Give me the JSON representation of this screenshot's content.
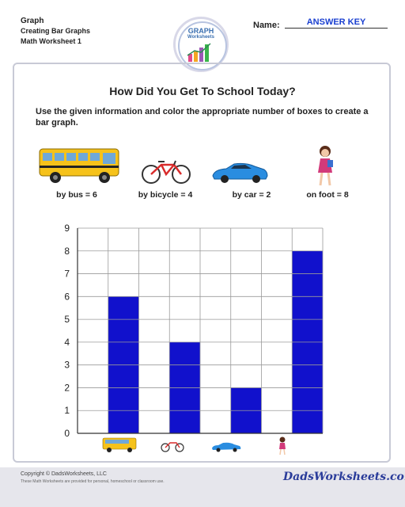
{
  "header": {
    "line1": "Graph",
    "line2": "Creating Bar Graphs",
    "line3": "Math Worksheet 1",
    "name_label": "Name:",
    "name_value": "ANSWER KEY"
  },
  "logo": {
    "title": "GRAPH",
    "subtitle": "Worksheets"
  },
  "title": "How Did You Get To School Today?",
  "instructions": "Use the given information and color the appropriate number of boxes to create a bar graph.",
  "items": [
    {
      "label": "by bus = 6",
      "icon": "school-bus-icon"
    },
    {
      "label": "by bicycle = 4",
      "icon": "bicycle-icon"
    },
    {
      "label": "by car = 2",
      "icon": "car-icon"
    },
    {
      "label": "on foot = 8",
      "icon": "walking-girl-icon"
    }
  ],
  "chart_data": {
    "type": "bar",
    "categories": [
      "bus",
      "bicycle",
      "car",
      "on foot"
    ],
    "values": [
      6,
      4,
      2,
      8
    ],
    "yticks": [
      "0",
      "1",
      "2",
      "3",
      "4",
      "5",
      "6",
      "7",
      "8",
      "9"
    ],
    "ylim": [
      0,
      9
    ],
    "grid": true,
    "bar_color": "#1111cc",
    "title": "",
    "xlabel": "",
    "ylabel": ""
  },
  "footer": {
    "copyright": "Copyright © DadsWorksheets, LLC",
    "note": "These Math Worksheets are provided for personal, homeschool or classroom use.",
    "brand": "DadsWorksheets.com"
  },
  "colors": {
    "accent": "#1a3fd0",
    "bar": "#1111cc",
    "frame": "#c8cad6"
  }
}
